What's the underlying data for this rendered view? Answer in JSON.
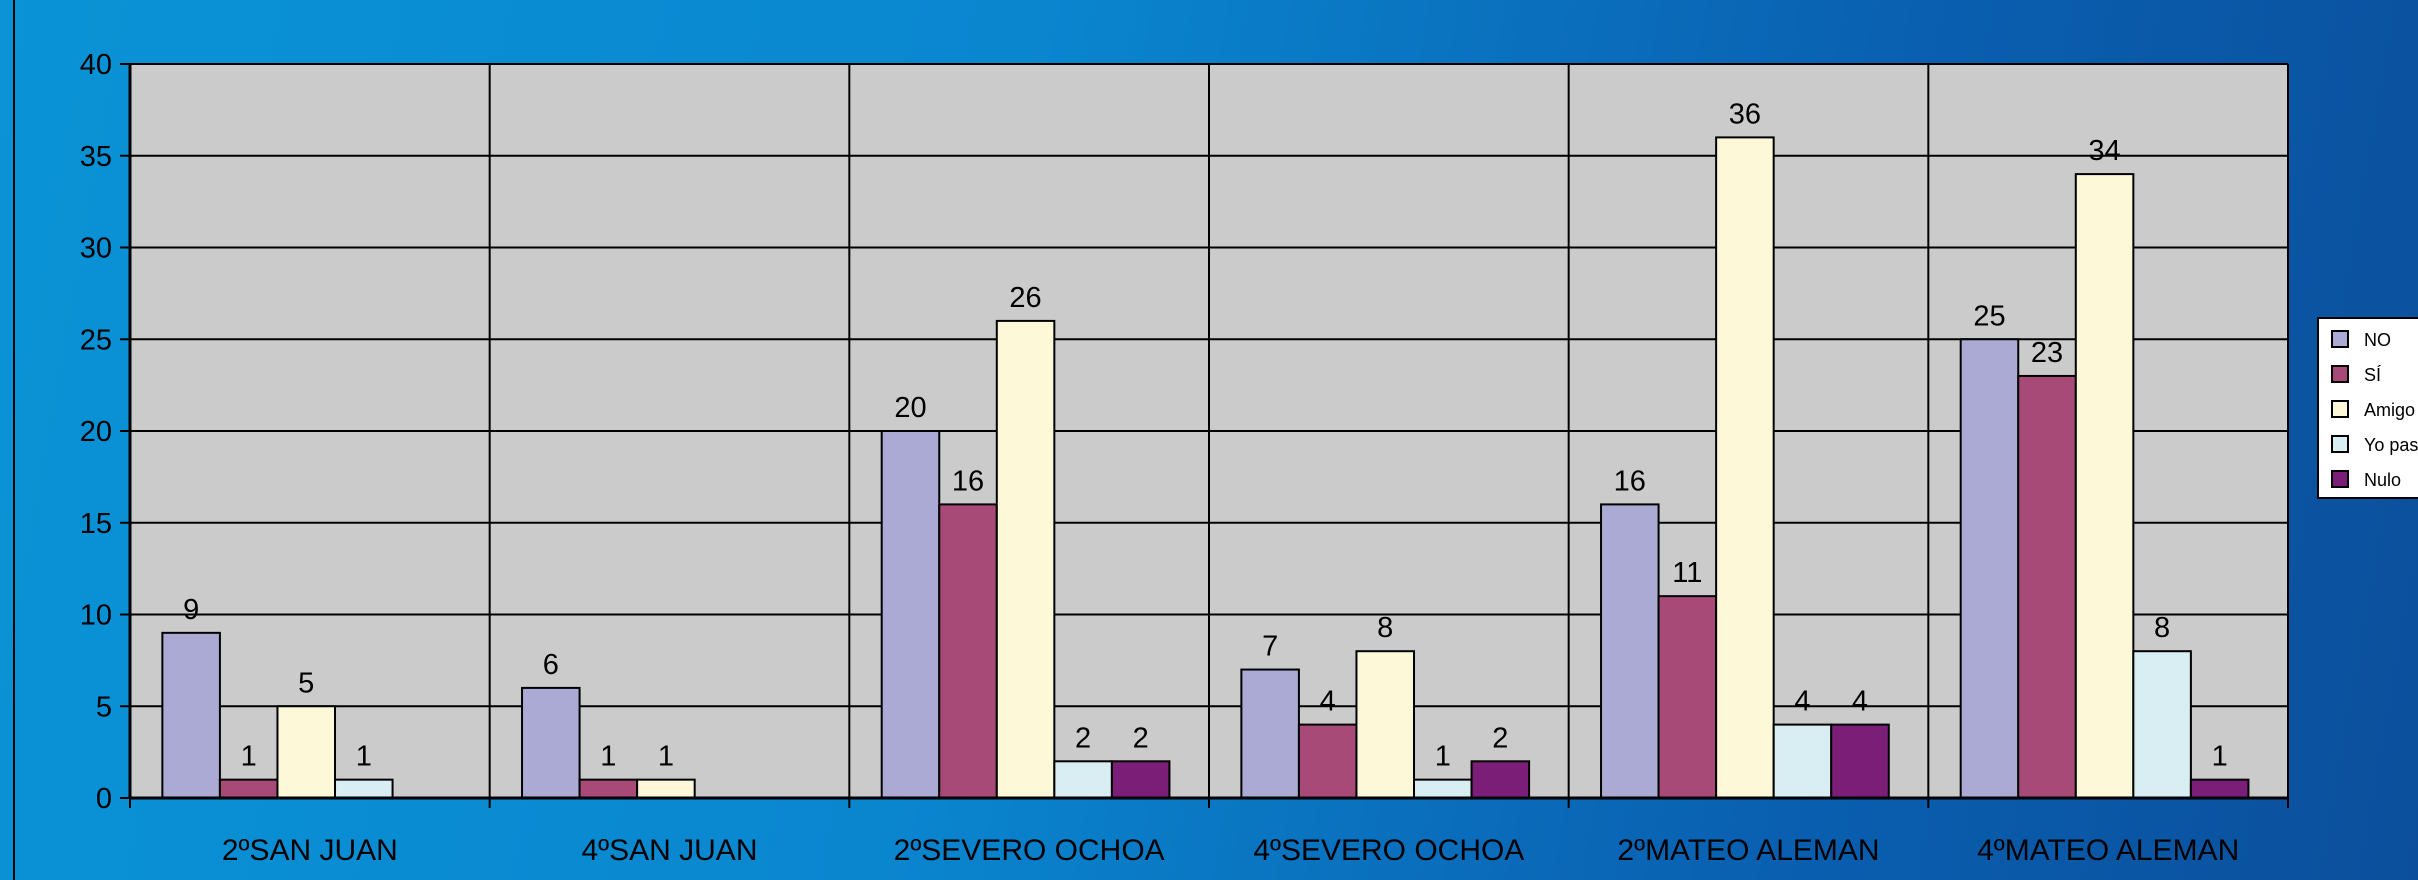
{
  "chart_data": {
    "type": "bar",
    "categories": [
      "2ºSAN JUAN",
      "4ºSAN JUAN",
      "2ºSEVERO OCHOA",
      "4ºSEVERO OCHOA",
      "2ºMATEO ALEMAN",
      "4ºMATEO ALEMAN"
    ],
    "series": [
      {
        "name": "NO",
        "color": "#aaaad4",
        "values": [
          9,
          6,
          20,
          7,
          16,
          25
        ]
      },
      {
        "name": "SÍ",
        "color": "#a84a78",
        "values": [
          1,
          1,
          16,
          4,
          11,
          23
        ]
      },
      {
        "name": "Amigo",
        "color": "#fdf8d8",
        "values": [
          5,
          1,
          26,
          8,
          36,
          34
        ]
      },
      {
        "name": "Yo paso",
        "color": "#d8eef2",
        "values": [
          1,
          null,
          2,
          1,
          4,
          8
        ]
      },
      {
        "name": "Nulo",
        "color": "#7a1e78",
        "values": [
          null,
          null,
          2,
          2,
          4,
          1
        ]
      }
    ],
    "ylim": [
      0,
      40
    ],
    "yticks": [
      0,
      5,
      10,
      15,
      20,
      25,
      30,
      35,
      40
    ],
    "grid": true,
    "legend_position": "right",
    "plot_background": "#cbcbcb",
    "title": "",
    "xlabel": "",
    "ylabel": ""
  }
}
